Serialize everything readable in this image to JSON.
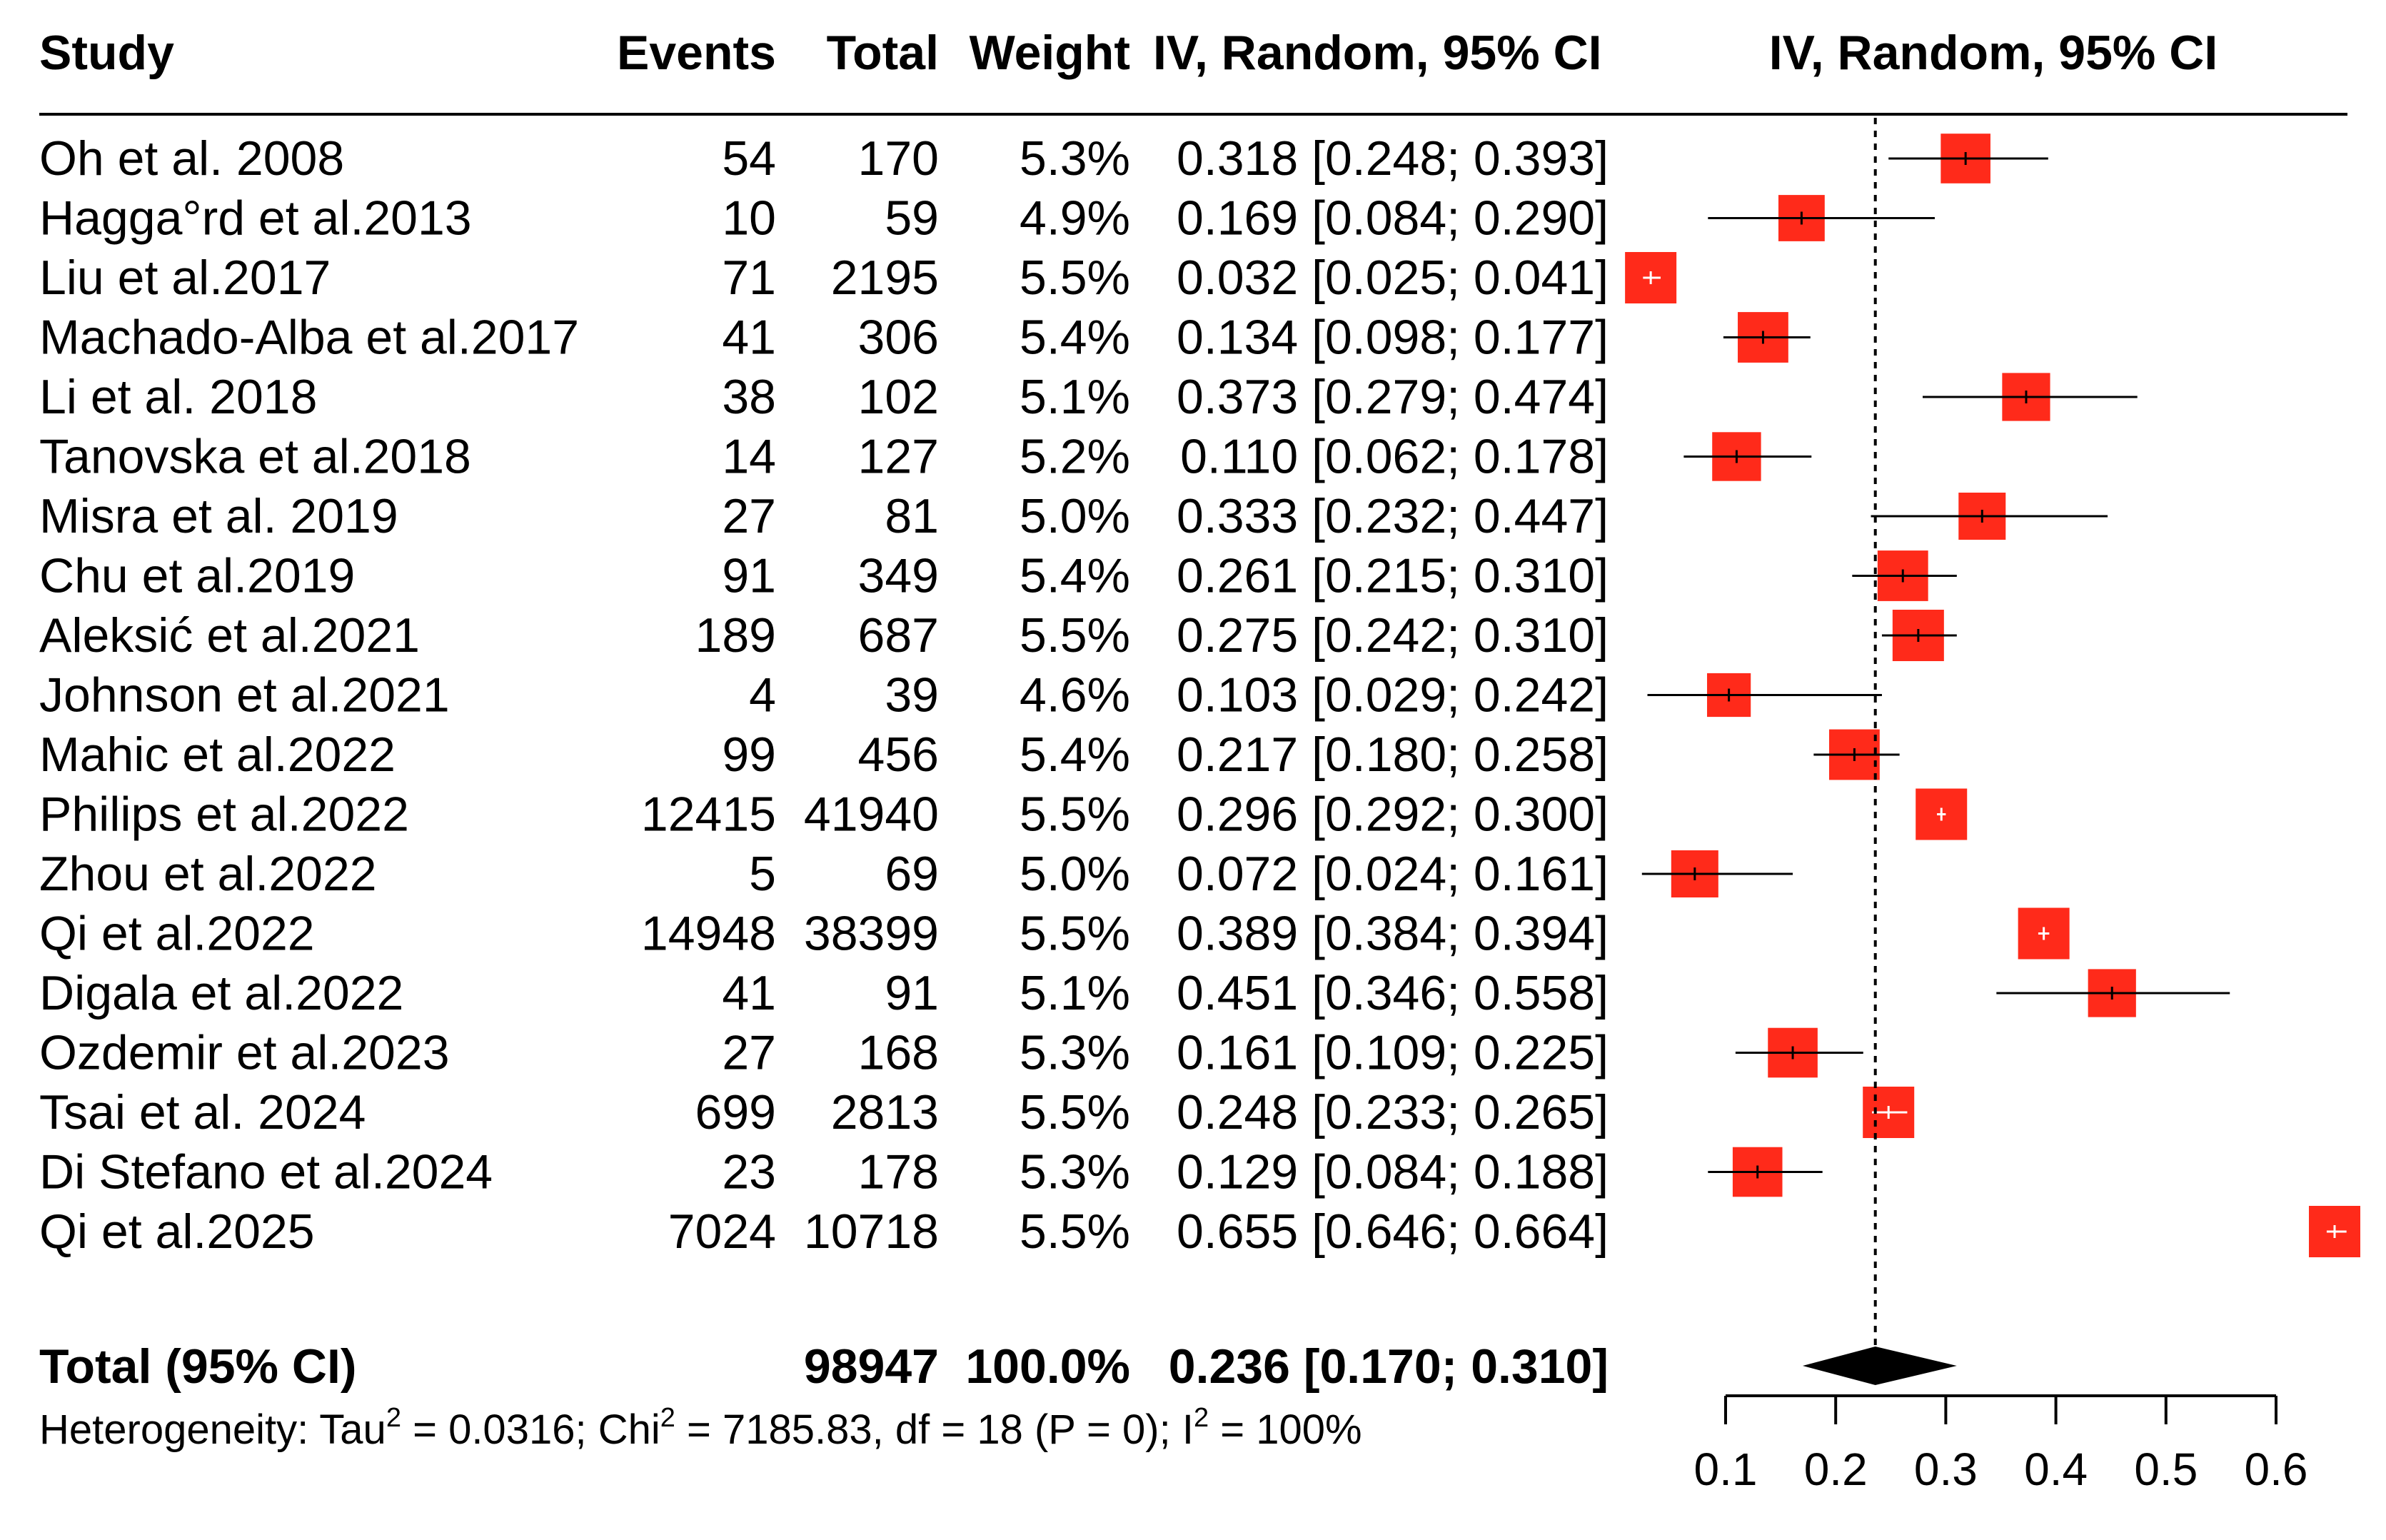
{
  "headers": {
    "study": "Study",
    "events": "Events",
    "total": "Total",
    "weight": "Weight",
    "ci": "IV, Random, 95% CI",
    "plot": "IV, Random, 95% CI"
  },
  "total_row": {
    "label": "Total (95% CI)",
    "total": "98947",
    "weight": "100.0%",
    "ci_text": "0.236 [0.170; 0.310]"
  },
  "heterogeneity": {
    "prefix": "Heterogeneity: Tau",
    "tau2": "0.0316",
    "chi2": "7185.83",
    "df": "18",
    "p": "0",
    "i2": "100%"
  },
  "colors": {
    "box": "#ff2a1a",
    "diamond": "#000000",
    "line": "#000000"
  },
  "chart_data": {
    "type": "forest",
    "xlim": [
      0.1,
      0.6
    ],
    "ticks": [
      0.1,
      0.2,
      0.3,
      0.4,
      0.5,
      0.6
    ],
    "tick_labels": [
      "0.1",
      "0.2",
      "0.3",
      "0.4",
      "0.5",
      "0.6"
    ],
    "reference_line": 0.236,
    "studies": [
      {
        "name": "Oh et al. 2008",
        "events": "54",
        "total": "170",
        "weight": "5.3%",
        "ci_text": "0.318 [0.248; 0.393]",
        "est": 0.318,
        "lo": 0.248,
        "hi": 0.393,
        "w": 5.3
      },
      {
        "name": "Hagga°rd et al.2013",
        "events": "10",
        "total": "59",
        "weight": "4.9%",
        "ci_text": "0.169 [0.084; 0.290]",
        "est": 0.169,
        "lo": 0.084,
        "hi": 0.29,
        "w": 4.9
      },
      {
        "name": "Liu et al.2017",
        "events": "71",
        "total": "2195",
        "weight": "5.5%",
        "ci_text": "0.032 [0.025; 0.041]",
        "est": 0.032,
        "lo": 0.025,
        "hi": 0.041,
        "w": 5.5
      },
      {
        "name": "Machado-Alba et al.2017",
        "events": "41",
        "total": "306",
        "weight": "5.4%",
        "ci_text": "0.134 [0.098; 0.177]",
        "est": 0.134,
        "lo": 0.098,
        "hi": 0.177,
        "w": 5.4
      },
      {
        "name": "Li et al. 2018",
        "events": "38",
        "total": "102",
        "weight": "5.1%",
        "ci_text": "0.373 [0.279; 0.474]",
        "est": 0.373,
        "lo": 0.279,
        "hi": 0.474,
        "w": 5.1
      },
      {
        "name": "Tanovska et al.2018",
        "events": "14",
        "total": "127",
        "weight": "5.2%",
        "ci_text": "0.110 [0.062; 0.178]",
        "est": 0.11,
        "lo": 0.062,
        "hi": 0.178,
        "w": 5.2
      },
      {
        "name": "Misra et al. 2019",
        "events": "27",
        "total": "81",
        "weight": "5.0%",
        "ci_text": "0.333 [0.232; 0.447]",
        "est": 0.333,
        "lo": 0.232,
        "hi": 0.447,
        "w": 5.0
      },
      {
        "name": "Chu et al.2019",
        "events": "91",
        "total": "349",
        "weight": "5.4%",
        "ci_text": "0.261 [0.215; 0.310]",
        "est": 0.261,
        "lo": 0.215,
        "hi": 0.31,
        "w": 5.4
      },
      {
        "name": "Aleksić et al.2021",
        "events": "189",
        "total": "687",
        "weight": "5.5%",
        "ci_text": "0.275 [0.242; 0.310]",
        "est": 0.275,
        "lo": 0.242,
        "hi": 0.31,
        "w": 5.5
      },
      {
        "name": "Johnson et al.2021",
        "events": "4",
        "total": "39",
        "weight": "4.6%",
        "ci_text": "0.103 [0.029; 0.242]",
        "est": 0.103,
        "lo": 0.029,
        "hi": 0.242,
        "w": 4.6
      },
      {
        "name": "Mahic et al.2022",
        "events": "99",
        "total": "456",
        "weight": "5.4%",
        "ci_text": "0.217 [0.180; 0.258]",
        "est": 0.217,
        "lo": 0.18,
        "hi": 0.258,
        "w": 5.4
      },
      {
        "name": "Philips et al.2022",
        "events": "12415",
        "total": "41940",
        "weight": "5.5%",
        "ci_text": "0.296 [0.292; 0.300]",
        "est": 0.296,
        "lo": 0.292,
        "hi": 0.3,
        "w": 5.5
      },
      {
        "name": "Zhou et al.2022",
        "events": "5",
        "total": "69",
        "weight": "5.0%",
        "ci_text": "0.072 [0.024; 0.161]",
        "est": 0.072,
        "lo": 0.024,
        "hi": 0.161,
        "w": 5.0
      },
      {
        "name": "Qi et al.2022",
        "events": "14948",
        "total": "38399",
        "weight": "5.5%",
        "ci_text": "0.389 [0.384; 0.394]",
        "est": 0.389,
        "lo": 0.384,
        "hi": 0.394,
        "w": 5.5
      },
      {
        "name": "Digala et al.2022",
        "events": "41",
        "total": "91",
        "weight": "5.1%",
        "ci_text": "0.451 [0.346; 0.558]",
        "est": 0.451,
        "lo": 0.346,
        "hi": 0.558,
        "w": 5.1
      },
      {
        "name": "Ozdemir et al.2023",
        "events": "27",
        "total": "168",
        "weight": "5.3%",
        "ci_text": "0.161 [0.109; 0.225]",
        "est": 0.161,
        "lo": 0.109,
        "hi": 0.225,
        "w": 5.3
      },
      {
        "name": "Tsai et al. 2024",
        "events": "699",
        "total": "2813",
        "weight": "5.5%",
        "ci_text": "0.248 [0.233; 0.265]",
        "est": 0.248,
        "lo": 0.233,
        "hi": 0.265,
        "w": 5.5
      },
      {
        "name": "Di Stefano et al.2024",
        "events": "23",
        "total": "178",
        "weight": "5.3%",
        "ci_text": "0.129 [0.084; 0.188]",
        "est": 0.129,
        "lo": 0.084,
        "hi": 0.188,
        "w": 5.3
      },
      {
        "name": "Qi et al.2025",
        "events": "7024",
        "total": "10718",
        "weight": "5.5%",
        "ci_text": "0.655 [0.646; 0.664]",
        "est": 0.655,
        "lo": 0.646,
        "hi": 0.664,
        "w": 5.5
      }
    ],
    "pooled": {
      "est": 0.236,
      "lo": 0.17,
      "hi": 0.31
    }
  }
}
